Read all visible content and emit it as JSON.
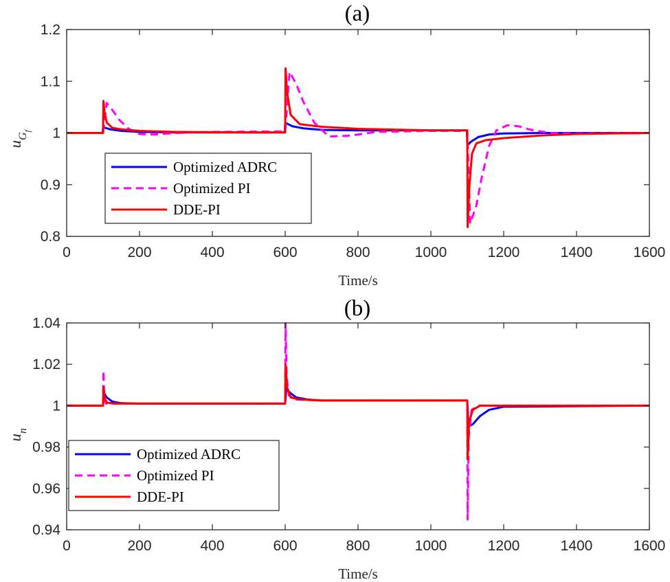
{
  "chart_data": [
    {
      "type": "line",
      "title": "(a)",
      "xlabel": "Time/s",
      "ylabel": "u",
      "ylabel_sub": "G",
      "ylabel_subsub": "f",
      "xlim": [
        0,
        1600
      ],
      "ylim": [
        0.8,
        1.2
      ],
      "xticks": [
        0,
        200,
        400,
        600,
        800,
        1000,
        1200,
        1400,
        1600
      ],
      "xtick_labels": [
        "0",
        "200",
        "400",
        "600",
        "800",
        "1000",
        "1200",
        "1400",
        "1600"
      ],
      "yticks": [
        0.8,
        0.9,
        1.0,
        1.1,
        1.2
      ],
      "ytick_labels": [
        "0.8",
        "0.9",
        "1",
        "1.1",
        "1.2"
      ],
      "legend": "bottom-left",
      "series": [
        {
          "name": "Optimized ADRC",
          "color": "#0000ff",
          "dash": "solid",
          "x": [
            0,
            99,
            100,
            105,
            120,
            150,
            200,
            300,
            500,
            599,
            600,
            605,
            620,
            650,
            700,
            800,
            1000,
            1099,
            1100,
            1103,
            1110,
            1130,
            1160,
            1200,
            1300,
            1600
          ],
          "y": [
            1.0,
            1.0,
            1.012,
            1.01,
            1.007,
            1.004,
            1.002,
            1.001,
            1.001,
            1.001,
            1.02,
            1.018,
            1.013,
            1.009,
            1.006,
            1.005,
            1.005,
            1.005,
            0.978,
            0.978,
            0.983,
            0.992,
            0.997,
            0.999,
            1.0,
            1.0
          ]
        },
        {
          "name": "Optimized PI",
          "color": "#ff00ff",
          "dash": "dashed",
          "x": [
            0,
            99,
            100,
            110,
            125,
            145,
            170,
            200,
            240,
            300,
            400,
            599,
            600,
            612,
            630,
            650,
            680,
            720,
            780,
            850,
            1000,
            1099,
            1100,
            1108,
            1125,
            1140,
            1160,
            1180,
            1210,
            1240,
            1280,
            1330,
            1400,
            1600
          ],
          "y": [
            1.0,
            1.0,
            1.0,
            1.058,
            1.045,
            1.025,
            1.008,
            0.998,
            0.997,
            1.0,
            1.002,
            1.003,
            1.003,
            1.118,
            1.095,
            1.06,
            1.02,
            0.993,
            0.995,
            1.002,
            1.004,
            1.004,
            1.004,
            0.825,
            0.86,
            0.915,
            0.975,
            1.005,
            1.015,
            1.013,
            1.005,
            1.0,
            0.999,
            1.0
          ]
        },
        {
          "name": "DDE-PI",
          "color": "#ff0000",
          "dash": "solid",
          "x": [
            0,
            99,
            100,
            101,
            104,
            110,
            125,
            150,
            200,
            300,
            500,
            599,
            600,
            601,
            605,
            615,
            640,
            700,
            800,
            1000,
            1099,
            1100,
            1101,
            1106,
            1113,
            1125,
            1150,
            1200,
            1300,
            1400,
            1600
          ],
          "y": [
            1.0,
            1.0,
            1.0,
            1.062,
            1.04,
            1.02,
            1.01,
            1.007,
            1.004,
            1.002,
            1.001,
            1.001,
            1.001,
            1.125,
            1.08,
            1.035,
            1.017,
            1.012,
            1.008,
            1.005,
            1.005,
            1.005,
            0.818,
            0.9,
            0.96,
            0.98,
            0.986,
            0.99,
            0.995,
            0.998,
            1.0
          ]
        }
      ]
    },
    {
      "type": "line",
      "title": "(b)",
      "xlabel": "Time/s",
      "ylabel": "u",
      "ylabel_sub": "n",
      "xlim": [
        0,
        1600
      ],
      "ylim": [
        0.94,
        1.04
      ],
      "xticks": [
        0,
        200,
        400,
        600,
        800,
        1000,
        1200,
        1400,
        1600
      ],
      "xtick_labels": [
        "0",
        "200",
        "400",
        "600",
        "800",
        "1000",
        "1200",
        "1400",
        "1600"
      ],
      "yticks": [
        0.94,
        0.96,
        0.98,
        1.0,
        1.02,
        1.04
      ],
      "ytick_labels": [
        "0.94",
        "0.96",
        "0.98",
        "1",
        "1.02",
        "1.04"
      ],
      "legend": "bottom-left",
      "series": [
        {
          "name": "Optimized ADRC",
          "color": "#0000ff",
          "dash": "solid",
          "x": [
            0,
            99,
            100,
            103,
            110,
            125,
            150,
            200,
            599,
            600,
            603,
            615,
            630,
            660,
            700,
            800,
            1099,
            1100,
            1103,
            1115,
            1135,
            1160,
            1200,
            1600
          ],
          "y": [
            1.0,
            1.0,
            1.0,
            1.006,
            1.004,
            1.002,
            1.0012,
            1.001,
            1.001,
            1.001,
            1.008,
            1.006,
            1.004,
            1.003,
            1.0025,
            1.0025,
            1.0025,
            1.0025,
            0.99,
            0.991,
            0.995,
            0.998,
            0.9995,
            1.0
          ]
        },
        {
          "name": "Optimized PI",
          "color": "#ff00ff",
          "dash": "dashed",
          "x": [
            0,
            99,
            100,
            101,
            103,
            108,
            130,
            599,
            600,
            601,
            604,
            610,
            630,
            700,
            1099,
            1100,
            1101,
            1104,
            1112,
            1130,
            1600
          ],
          "y": [
            1.0,
            1.0,
            1.0,
            1.017,
            1.005,
            1.001,
            1.001,
            1.001,
            1.001,
            1.04,
            1.014,
            1.005,
            1.003,
            1.0025,
            1.0025,
            1.0025,
            0.945,
            0.985,
            0.998,
            1.0,
            1.0
          ]
        },
        {
          "name": "DDE-PI",
          "color": "#ff0000",
          "dash": "solid",
          "x": [
            0,
            99,
            100,
            101,
            104,
            110,
            130,
            599,
            600,
            601,
            605,
            615,
            640,
            700,
            1099,
            1100,
            1101,
            1105,
            1115,
            1135,
            1160,
            1600
          ],
          "y": [
            1.0,
            1.0,
            1.0,
            1.009,
            1.004,
            1.0015,
            1.001,
            1.001,
            1.001,
            1.02,
            1.009,
            1.004,
            1.003,
            1.0025,
            1.0025,
            1.0025,
            0.974,
            0.992,
            0.998,
            1.0,
            1.0,
            1.0
          ]
        }
      ]
    }
  ]
}
